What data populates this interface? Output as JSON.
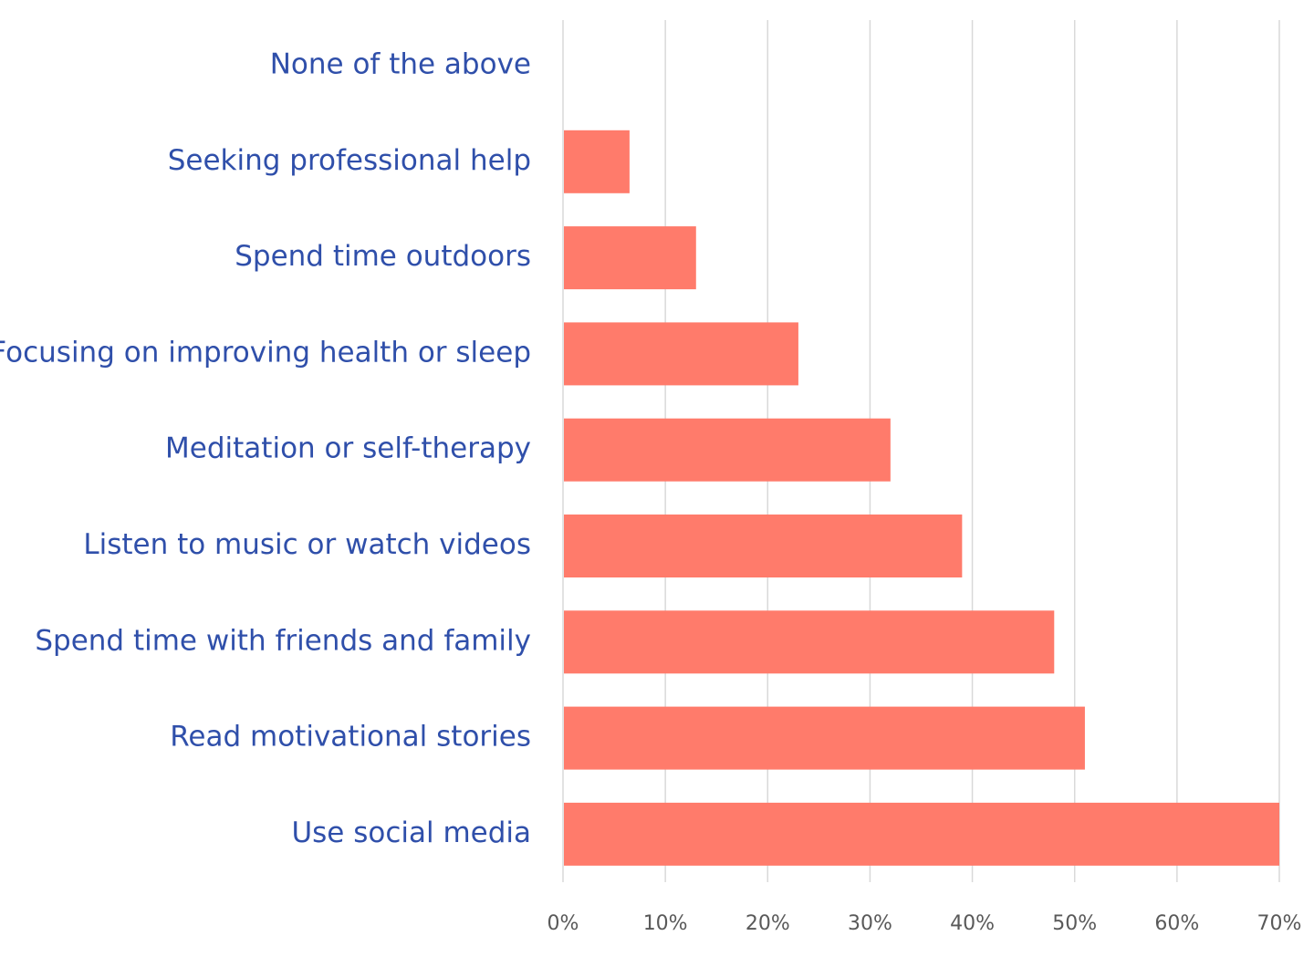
{
  "chart_data": {
    "type": "bar",
    "orientation": "horizontal",
    "title": "",
    "xlabel": "",
    "ylabel": "",
    "categories": [
      "None of the above",
      "Seeking professional help",
      "Spend time outdoors",
      "Focusing on improving health or sleep",
      "Meditation or self-therapy",
      "Listen to music or watch videos",
      "Spend time with friends and family",
      "Read motivational stories",
      "Use social media"
    ],
    "values": [
      0,
      6.5,
      13,
      23,
      32,
      39,
      48,
      51,
      70
    ],
    "xlim": [
      0,
      70
    ],
    "xticks": [
      {
        "value": 0,
        "label": "0%"
      },
      {
        "value": 10,
        "label": "10%"
      },
      {
        "value": 20,
        "label": "20%"
      },
      {
        "value": 30,
        "label": "30%"
      },
      {
        "value": 40,
        "label": "40%"
      },
      {
        "value": 50,
        "label": "50%"
      },
      {
        "value": 60,
        "label": "60%"
      },
      {
        "value": 70,
        "label": "70%"
      }
    ],
    "grid": true,
    "legend": "none",
    "colors": {
      "bar": "#ff7b6b",
      "category_text": "#2f4faa",
      "tick_text": "#595959",
      "grid": "#d9d9d9"
    }
  }
}
